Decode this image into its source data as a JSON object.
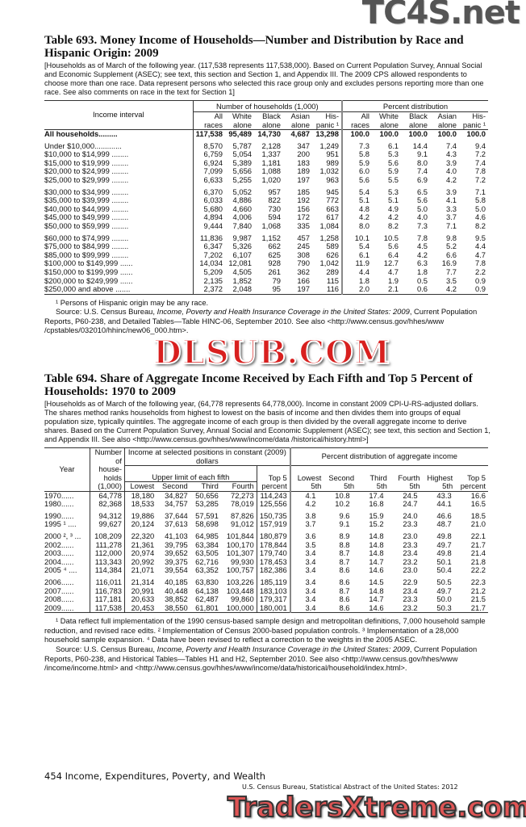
{
  "watermarks": {
    "top": "TC4S.net",
    "middle": "DLSUB.COM",
    "bottom": "TradersXtreme.com"
  },
  "t693": {
    "title": "Table 693. Money Income of Households—Number and Distribution by Race and Hispanic Origin: 2009",
    "intro": "[Households as of March of the following year. (117,538 represents 117,538,000). Based on Current Population Survey, Annual Social and Economic Supplement (ASEC); see text, this section and Section 1, and Appendix III. The 2009 CPS allowed respondents to choose more than one race. Data represent persons who selected this race group only and excludes persons reporting more than one race. See also comments on race in the text for Section 1]",
    "stub_header": "Income interval",
    "group1": "Number of households (1,000)",
    "group2": "Percent distribution",
    "cols": [
      "All races",
      "White alone",
      "Black alone",
      "Asian alone",
      "His-panic ¹",
      "All races",
      "White alone",
      "Black alone",
      "Asian alone",
      "His-panic ¹"
    ],
    "total": {
      "label": "All households.........",
      "values": [
        "117,538",
        "95,489",
        "14,730",
        "4,687",
        "13,298",
        "100.0",
        "100.0",
        "100.0",
        "100.0",
        "100.0"
      ]
    },
    "groups": [
      [
        {
          "label": "Under $10,000.............",
          "values": [
            "8,570",
            "5,787",
            "2,128",
            "347",
            "1,249",
            "7.3",
            "6.1",
            "14.4",
            "7.4",
            "9.4"
          ]
        },
        {
          "label": "$10,000 to $14,999 ........",
          "values": [
            "6,759",
            "5,054",
            "1,337",
            "200",
            "951",
            "5.8",
            "5.3",
            "9.1",
            "4.3",
            "7.2"
          ]
        },
        {
          "label": "$15,000 to $19,999 ........",
          "values": [
            "6,924",
            "5,389",
            "1,181",
            "183",
            "989",
            "5.9",
            "5.6",
            "8.0",
            "3.9",
            "7.4"
          ]
        },
        {
          "label": "$20,000 to $24,999 ........",
          "values": [
            "7,099",
            "5,656",
            "1,088",
            "189",
            "1,032",
            "6.0",
            "5.9",
            "7.4",
            "4.0",
            "7.8"
          ]
        },
        {
          "label": "$25,000 to $29,999 ........",
          "values": [
            "6,633",
            "5,255",
            "1,020",
            "197",
            "963",
            "5.6",
            "5.5",
            "6.9",
            "4.2",
            "7.2"
          ]
        }
      ],
      [
        {
          "label": "$30,000 to $34,999 ........",
          "values": [
            "6,370",
            "5,052",
            "957",
            "185",
            "945",
            "5.4",
            "5.3",
            "6.5",
            "3.9",
            "7.1"
          ]
        },
        {
          "label": "$35,000 to $39,999 ........",
          "values": [
            "6,033",
            "4,886",
            "822",
            "192",
            "772",
            "5.1",
            "5.1",
            "5.6",
            "4.1",
            "5.8"
          ]
        },
        {
          "label": "$40,000 to $44,999 ........",
          "values": [
            "5,680",
            "4,660",
            "730",
            "156",
            "663",
            "4.8",
            "4.9",
            "5.0",
            "3.3",
            "5.0"
          ]
        },
        {
          "label": "$45,000 to $49,999 ........",
          "values": [
            "4,894",
            "4,006",
            "594",
            "172",
            "617",
            "4.2",
            "4.2",
            "4.0",
            "3.7",
            "4.6"
          ]
        },
        {
          "label": "$50,000 to $59,999 ........",
          "values": [
            "9,444",
            "7,840",
            "1,068",
            "335",
            "1,084",
            "8.0",
            "8.2",
            "7.3",
            "7.1",
            "8.2"
          ]
        }
      ],
      [
        {
          "label": "$60,000 to $74,999 ........",
          "values": [
            "11,836",
            "9,987",
            "1,152",
            "457",
            "1,258",
            "10.1",
            "10.5",
            "7.8",
            "9.8",
            "9.5"
          ]
        },
        {
          "label": "$75,000 to $84,999 ........",
          "values": [
            "6,347",
            "5,326",
            "662",
            "245",
            "589",
            "5.4",
            "5.6",
            "4.5",
            "5.2",
            "4.4"
          ]
        },
        {
          "label": "$85,000 to $99,999 ........",
          "values": [
            "7,202",
            "6,107",
            "625",
            "308",
            "626",
            "6.1",
            "6.4",
            "4.2",
            "6.6",
            "4.7"
          ]
        },
        {
          "label": "$100,000 to $149,999 ......",
          "values": [
            "14,034",
            "12,081",
            "928",
            "790",
            "1,042",
            "11.9",
            "12.7",
            "6.3",
            "16.9",
            "7.8"
          ]
        },
        {
          "label": "$150,000 to $199,999 ......",
          "values": [
            "5,209",
            "4,505",
            "261",
            "362",
            "289",
            "4.4",
            "4.7",
            "1.8",
            "7.7",
            "2.2"
          ]
        },
        {
          "label": "$200,000 to $249,999 ......",
          "values": [
            "2,135",
            "1,852",
            "79",
            "166",
            "115",
            "1.8",
            "1.9",
            "0.5",
            "3.5",
            "0.9"
          ]
        },
        {
          "label": "$250,000 and above .......",
          "values": [
            "2,372",
            "2,048",
            "95",
            "197",
            "116",
            "2.0",
            "2.1",
            "0.6",
            "4.2",
            "0.9"
          ]
        }
      ]
    ],
    "footnote": "¹ Persons of Hispanic origin may be any race.",
    "source_prefix": "Source: U.S. Census Bureau, ",
    "source_title": "Income, Poverty and Health Insurance Coverage in the United States: 2009",
    "source_rest": ", Current Population Reports, P60-238, and Detailed Tables—Table HINC-06, September 2010. See also <http://www.census.gov/hhes/www /cpstables/032010/hhinc/new06_000.htm>."
  },
  "t694": {
    "title": "Table 694. Share of Aggregate Income Received by Each Fifth and Top 5 Percent of Households: 1970 to 2009",
    "intro": "[Households as of March of the following year, (64,778 represents 64,778,000). Income in constant 2009 CPI-U-RS-adjusted dollars. The shares method ranks households from highest to lowest on the basis of income and then divides them into groups of equal population size, typically quintiles. The aggregate income of each group is then divided by the overall aggregate income to derive shares. Based on the Current Population Survey, Annual Social and Economic Supplement (ASEC); see text, this section and Section 1, and Appendix III. See also <http://www.census.gov/hhes/www/income/data /historical/history.html>]",
    "year_header": "Year",
    "households_header": "Number of house-holds (1,000)",
    "income_group": "Income at selected positions in constant (2009) dollars",
    "upper_limit": "Upper limit of each fifth",
    "income_cols": [
      "Lowest",
      "Second",
      "Third",
      "Fourth",
      "Top 5 percent"
    ],
    "pct_group": "Percent distribution of aggregate income",
    "pct_cols": [
      "Lowest 5th",
      "Second 5th",
      "Third 5th",
      "Fourth 5th",
      "Highest 5th",
      "Top 5 percent"
    ],
    "groups": [
      [
        {
          "year": "1970......",
          "values": [
            "64,778",
            "18,180",
            "34,827",
            "50,656",
            "72,273",
            "114,243",
            "4.1",
            "10.8",
            "17.4",
            "24.5",
            "43.3",
            "16.6"
          ]
        },
        {
          "year": "1980......",
          "values": [
            "82,368",
            "18,533",
            "34,757",
            "53,285",
            "78,019",
            "125,556",
            "4.2",
            "10.2",
            "16.8",
            "24.7",
            "44.1",
            "16.5"
          ]
        }
      ],
      [
        {
          "year": "1990......",
          "values": [
            "94,312",
            "19,886",
            "37,644",
            "57,591",
            "87,826",
            "150,735",
            "3.8",
            "9.6",
            "15.9",
            "24.0",
            "46.6",
            "18.5"
          ]
        },
        {
          "year": "1995 ¹ ....",
          "values": [
            "99,627",
            "20,124",
            "37,613",
            "58,698",
            "91,012",
            "157,919",
            "3.7",
            "9.1",
            "15.2",
            "23.3",
            "48.7",
            "21.0"
          ]
        }
      ],
      [
        {
          "year": "2000 ², ³ ...",
          "values": [
            "108,209",
            "22,320",
            "41,103",
            "64,985",
            "101,844",
            "180,879",
            "3.6",
            "8.9",
            "14.8",
            "23.0",
            "49.8",
            "22.1"
          ]
        },
        {
          "year": "2002......",
          "values": [
            "111,278",
            "21,361",
            "39,795",
            "63,384",
            "100,170",
            "178,844",
            "3.5",
            "8.8",
            "14.8",
            "23.3",
            "49.7",
            "21.7"
          ]
        },
        {
          "year": "2003......",
          "values": [
            "112,000",
            "20,974",
            "39,652",
            "63,505",
            "101,307",
            "179,740",
            "3.4",
            "8.7",
            "14.8",
            "23.4",
            "49.8",
            "21.4"
          ]
        },
        {
          "year": "2004......",
          "values": [
            "113,343",
            "20,992",
            "39,375",
            "62,716",
            "99,930",
            "178,453",
            "3.4",
            "8.7",
            "14.7",
            "23.2",
            "50.1",
            "21.8"
          ]
        },
        {
          "year": "2005 ⁴ ....",
          "values": [
            "114,384",
            "21,071",
            "39,554",
            "63,352",
            "100,757",
            "182,386",
            "3.4",
            "8.6",
            "14.6",
            "23.0",
            "50.4",
            "22.2"
          ]
        }
      ],
      [
        {
          "year": "2006......",
          "values": [
            "116,011",
            "21,314",
            "40,185",
            "63,830",
            "103,226",
            "185,119",
            "3.4",
            "8.6",
            "14.5",
            "22.9",
            "50.5",
            "22.3"
          ]
        },
        {
          "year": "2007......",
          "values": [
            "116,783",
            "20,991",
            "40,448",
            "64,138",
            "103,448",
            "183,103",
            "3.4",
            "8.7",
            "14.8",
            "23.4",
            "49.7",
            "21.2"
          ]
        },
        {
          "year": "2008......",
          "values": [
            "117,181",
            "20,633",
            "38,852",
            "62,487",
            "99,860",
            "179,317",
            "3.4",
            "8.6",
            "14.7",
            "23.3",
            "50.0",
            "21.5"
          ]
        },
        {
          "year": "2009......",
          "values": [
            "117,538",
            "20,453",
            "38,550",
            "61,801",
            "100,000",
            "180,001",
            "3.4",
            "8.6",
            "14.6",
            "23.2",
            "50.3",
            "21.7"
          ]
        }
      ]
    ],
    "footnotes": "¹ Data reflect full implementation of the 1990 census-based sample design and metropolitan definitions, 7,000 household sample reduction, and revised race edits. ² Implementation of Census 2000-based population controls. ³ Implementation of a 28,000 household sample expansion. ⁴ Data have been revised to reflect a correction to the weights in the 2005 ASEC.",
    "source_prefix": "Source: U.S. Census Bureau, ",
    "source_title": "Income, Poverty and Health Insurance Coverage in the United States: 2009",
    "source_rest": ", Current Population Reports, P60-238, and Historical Tables—Tables H1 and H2, September 2010. See also <http://www.census.gov/hhes/www /income/income.html> and <http://www.census.gov/hhes/www/income/data/historical/household/index.html>."
  },
  "footer": {
    "page": "454  Income, Expenditures, Poverty, and Wealth",
    "publication": "U.S. Census Bureau, Statistical Abstract of the United States: 2012"
  }
}
